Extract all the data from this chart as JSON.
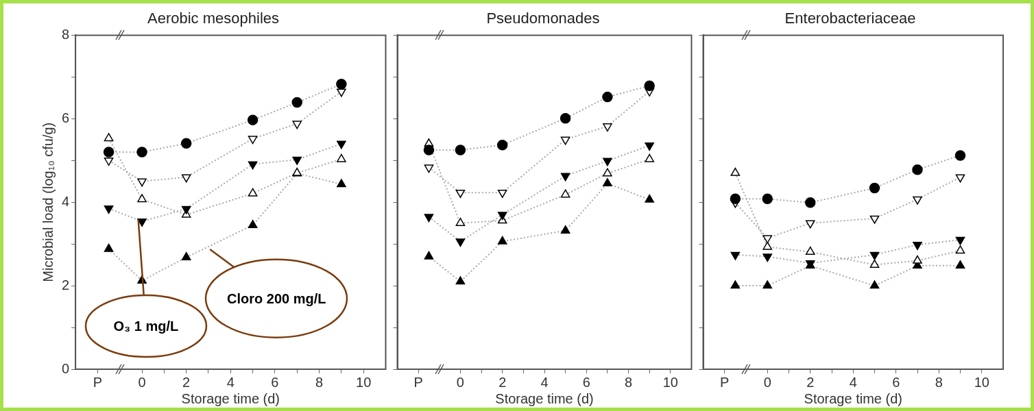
{
  "chart_data": [
    {
      "type": "line",
      "title": "Aerobic mesophiles",
      "xlabel": "Storage time (d)",
      "ylabel": "Microbial load (log₁₀ cfu/g)",
      "line_style": "dotted",
      "x": [
        -1.5,
        0,
        2,
        5,
        7,
        9
      ],
      "xlim": [
        -3,
        11
      ],
      "xticks": [
        {
          "value": -2,
          "label": "P"
        },
        0,
        {
          "value": 1,
          "label": null
        },
        2,
        {
          "value": 3,
          "label": null
        },
        4,
        {
          "value": 5,
          "label": null
        },
        6,
        {
          "value": 7,
          "label": null
        },
        8,
        {
          "value": 9,
          "label": null
        },
        10
      ],
      "ylim": [
        0,
        8
      ],
      "yticks": [
        0,
        {
          "value": 1,
          "label": null
        },
        2,
        {
          "value": 3,
          "label": null
        },
        4,
        {
          "value": 5,
          "label": null
        },
        6,
        {
          "value": 7,
          "label": null
        },
        8
      ],
      "series": [
        {
          "color": "#000000",
          "marker": "circle",
          "values": [
            5.2,
            5.2,
            5.41,
            5.97,
            6.39,
            6.83
          ]
        },
        {
          "color": "#000000",
          "marker": "triangle-down-open",
          "values": [
            5.0,
            4.5,
            4.6,
            5.52,
            5.88,
            6.65
          ]
        },
        {
          "color": "#000000",
          "marker": "triangle-down",
          "values": [
            3.85,
            3.54,
            3.84,
            4.91,
            5.02,
            5.4
          ]
        },
        {
          "color": "#000000",
          "marker": "triangle-open",
          "values": [
            5.53,
            4.07,
            3.7,
            4.21,
            4.7,
            5.03
          ]
        },
        {
          "color": "#000000",
          "marker": "triangle",
          "values": [
            2.88,
            2.12,
            2.68,
            3.45,
            4.69,
            4.43
          ]
        }
      ],
      "annotations": [
        "O₃ 1 mg/L",
        "Cloro 200 mg/L"
      ]
    },
    {
      "type": "line",
      "title": "Pseudomonades",
      "xlabel": "Storage time (d)",
      "tick_labels": "x",
      "line_style": "dotted",
      "x": [
        -1.5,
        0,
        2,
        5,
        7,
        9
      ],
      "xlim": [
        -3,
        11
      ],
      "xticks": [
        {
          "value": -2,
          "label": "P"
        },
        0,
        {
          "value": 1,
          "label": null
        },
        2,
        {
          "value": 3,
          "label": null
        },
        4,
        {
          "value": 5,
          "label": null
        },
        6,
        {
          "value": 7,
          "label": null
        },
        8,
        {
          "value": 9,
          "label": null
        },
        10
      ],
      "ylim": [
        0,
        8
      ],
      "yticks": [
        0,
        {
          "value": 1,
          "label": null
        },
        2,
        {
          "value": 3,
          "label": null
        },
        4,
        {
          "value": 5,
          "label": null
        },
        6,
        {
          "value": 7,
          "label": null
        },
        8
      ],
      "series": [
        {
          "color": "#000000",
          "marker": "circle",
          "values": [
            5.25,
            5.25,
            5.37,
            6.01,
            6.52,
            6.79
          ]
        },
        {
          "color": "#000000",
          "marker": "triangle-down-open",
          "values": [
            4.83,
            4.23,
            4.23,
            5.5,
            5.82,
            6.66
          ]
        },
        {
          "color": "#000000",
          "marker": "triangle-down",
          "values": [
            3.65,
            3.06,
            3.7,
            4.63,
            4.99,
            5.36
          ]
        },
        {
          "color": "#000000",
          "marker": "triangle-open",
          "values": [
            5.4,
            3.5,
            3.56,
            4.18,
            4.69,
            5.03
          ]
        },
        {
          "color": "#000000",
          "marker": "triangle",
          "values": [
            2.7,
            2.1,
            3.06,
            3.32,
            4.45,
            4.06
          ]
        }
      ]
    },
    {
      "type": "line",
      "title": "Enterobacteriaceae",
      "xlabel": "Storage time (d)",
      "tick_labels": "x",
      "line_style": "dotted",
      "x": [
        -1.5,
        0,
        2,
        5,
        7,
        9
      ],
      "xlim": [
        -3,
        11
      ],
      "xticks": [
        {
          "value": -2,
          "label": "P"
        },
        0,
        {
          "value": 1,
          "label": null
        },
        2,
        {
          "value": 3,
          "label": null
        },
        4,
        {
          "value": 5,
          "label": null
        },
        6,
        {
          "value": 7,
          "label": null
        },
        8,
        {
          "value": 9,
          "label": null
        },
        10
      ],
      "ylim": [
        0,
        8
      ],
      "yticks": [
        0,
        {
          "value": 1,
          "label": null
        },
        2,
        {
          "value": 3,
          "label": null
        },
        4,
        {
          "value": 5,
          "label": null
        },
        6,
        {
          "value": 7,
          "label": null
        },
        8
      ],
      "series": [
        {
          "color": "#000000",
          "marker": "circle",
          "values": [
            4.08,
            4.08,
            3.99,
            4.34,
            4.78,
            5.12
          ]
        },
        {
          "color": "#000000",
          "marker": "triangle-down-open",
          "values": [
            3.99,
            3.14,
            3.5,
            3.61,
            4.07,
            4.6
          ]
        },
        {
          "color": "#000000",
          "marker": "triangle-down",
          "values": [
            2.74,
            2.7,
            2.54,
            2.74,
            2.98,
            3.1
          ]
        },
        {
          "color": "#000000",
          "marker": "triangle-open",
          "values": [
            4.7,
            2.93,
            2.81,
            2.5,
            2.6,
            2.84
          ]
        },
        {
          "color": "#000000",
          "marker": "triangle",
          "values": [
            2.0,
            2.0,
            2.48,
            2.0,
            2.48,
            2.48
          ]
        }
      ]
    }
  ]
}
